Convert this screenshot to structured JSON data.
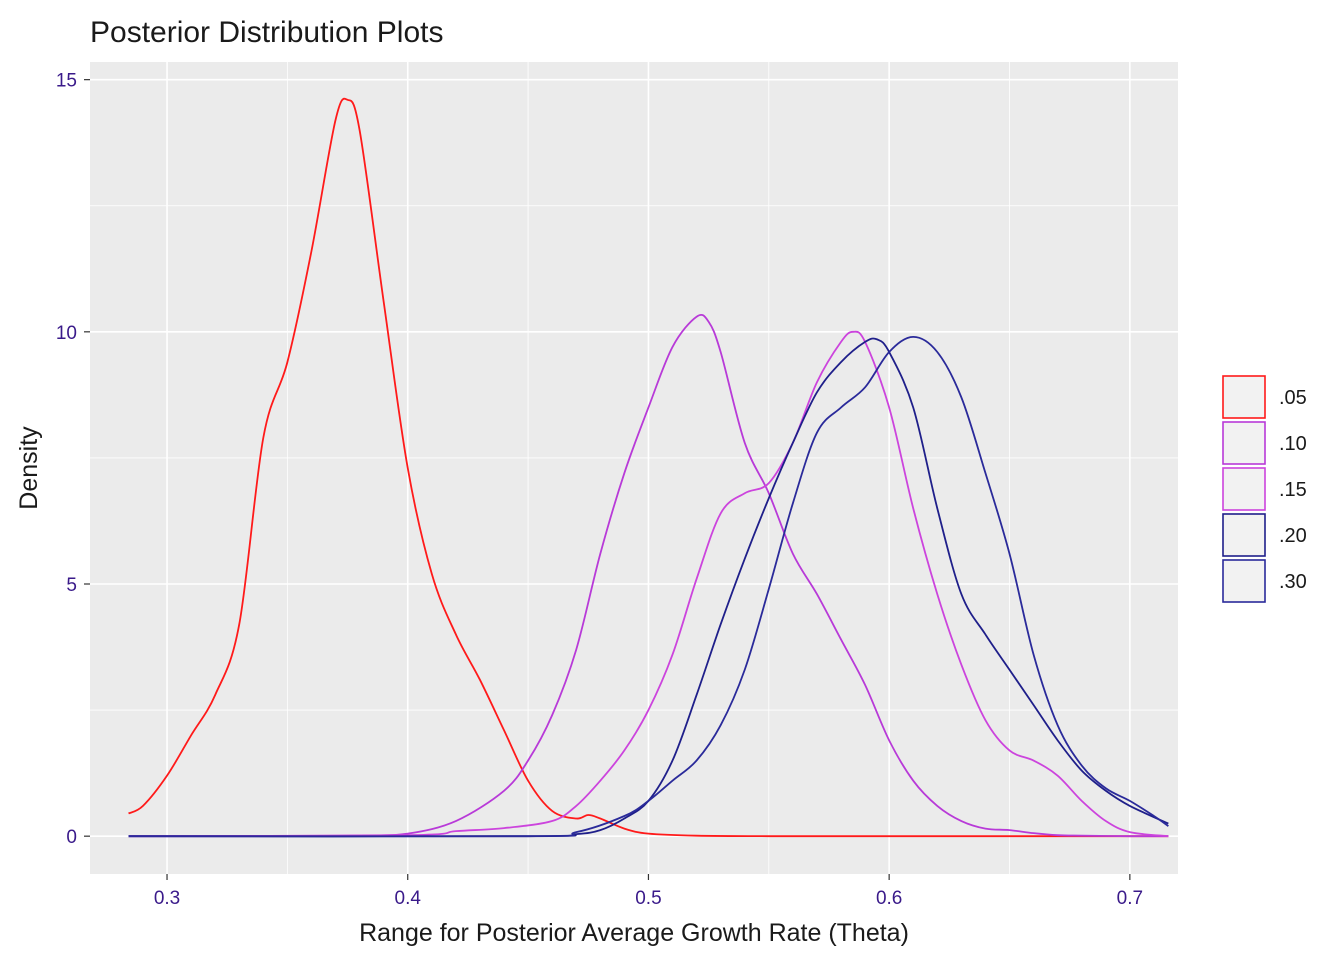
{
  "chart_data": {
    "type": "line",
    "title": "Posterior Distribution Plots",
    "xlabel": "Range for Posterior Average Growth Rate (Theta)",
    "ylabel": "Density",
    "xlim": [
      0.268,
      0.72
    ],
    "ylim": [
      -0.75,
      15.35
    ],
    "x_ticks": [
      0.3,
      0.4,
      0.5,
      0.6,
      0.7
    ],
    "x_tick_labels": [
      "0.3",
      "0.4",
      "0.5",
      "0.6",
      "0.7"
    ],
    "y_ticks": [
      0,
      5,
      10,
      15
    ],
    "y_tick_labels": [
      "0",
      "5",
      "10",
      "15"
    ],
    "grid": true,
    "legend_position": "right",
    "colors": {
      "panel_background": "#ebebeb",
      "grid": "#ffffff",
      "tick_label": "#3a1a8a"
    },
    "series": [
      {
        "name": ".05",
        "color": "#ff1a1a",
        "x": [
          0.284,
          0.29,
          0.3,
          0.31,
          0.32,
          0.33,
          0.34,
          0.35,
          0.36,
          0.37,
          0.375,
          0.38,
          0.39,
          0.4,
          0.41,
          0.42,
          0.43,
          0.44,
          0.45,
          0.46,
          0.47,
          0.475,
          0.48,
          0.49,
          0.5,
          0.52,
          0.55,
          0.6,
          0.65,
          0.7,
          0.716
        ],
        "y": [
          0.45,
          0.6,
          1.2,
          2.0,
          2.8,
          4.2,
          7.9,
          9.4,
          11.6,
          14.2,
          14.6,
          14.0,
          10.6,
          7.3,
          5.2,
          4.0,
          3.1,
          2.1,
          1.1,
          0.5,
          0.35,
          0.42,
          0.35,
          0.15,
          0.05,
          0.01,
          0.0,
          0.0,
          0.0,
          0.0,
          0.0
        ]
      },
      {
        "name": ".10",
        "color": "#b83ad8",
        "x": [
          0.284,
          0.35,
          0.38,
          0.4,
          0.42,
          0.44,
          0.45,
          0.46,
          0.47,
          0.48,
          0.49,
          0.5,
          0.51,
          0.52,
          0.525,
          0.53,
          0.54,
          0.55,
          0.56,
          0.57,
          0.58,
          0.59,
          0.6,
          0.61,
          0.62,
          0.63,
          0.64,
          0.65,
          0.66,
          0.67,
          0.68,
          0.7,
          0.716
        ],
        "y": [
          0.0,
          0.0,
          0.01,
          0.05,
          0.3,
          0.9,
          1.5,
          2.4,
          3.7,
          5.6,
          7.2,
          8.5,
          9.7,
          10.3,
          10.2,
          9.6,
          7.8,
          6.8,
          5.6,
          4.8,
          3.9,
          3.0,
          1.9,
          1.1,
          0.6,
          0.3,
          0.15,
          0.12,
          0.06,
          0.02,
          0.01,
          0.0,
          0.0
        ]
      },
      {
        "name": ".15",
        "color": "#cc44dd",
        "x": [
          0.284,
          0.4,
          0.42,
          0.44,
          0.46,
          0.47,
          0.48,
          0.49,
          0.5,
          0.51,
          0.52,
          0.53,
          0.54,
          0.55,
          0.56,
          0.57,
          0.58,
          0.585,
          0.59,
          0.6,
          0.61,
          0.62,
          0.63,
          0.64,
          0.65,
          0.66,
          0.67,
          0.68,
          0.69,
          0.7,
          0.716
        ],
        "y": [
          0.0,
          0.02,
          0.1,
          0.16,
          0.3,
          0.6,
          1.1,
          1.7,
          2.5,
          3.6,
          5.1,
          6.4,
          6.8,
          7.0,
          7.8,
          9.0,
          9.8,
          10.0,
          9.8,
          8.5,
          6.5,
          4.8,
          3.4,
          2.3,
          1.7,
          1.5,
          1.2,
          0.7,
          0.3,
          0.08,
          0.0
        ]
      },
      {
        "name": ".20",
        "color": "#1f1f8a",
        "x": [
          0.284,
          0.45,
          0.47,
          0.48,
          0.49,
          0.5,
          0.51,
          0.52,
          0.53,
          0.54,
          0.55,
          0.56,
          0.57,
          0.58,
          0.59,
          0.595,
          0.6,
          0.61,
          0.62,
          0.63,
          0.64,
          0.65,
          0.66,
          0.67,
          0.68,
          0.69,
          0.7,
          0.716
        ],
        "y": [
          0.0,
          0.0,
          0.04,
          0.12,
          0.35,
          0.7,
          1.5,
          2.8,
          4.2,
          5.5,
          6.7,
          7.8,
          8.8,
          9.4,
          9.8,
          9.85,
          9.6,
          8.5,
          6.5,
          4.8,
          4.0,
          3.3,
          2.6,
          1.9,
          1.3,
          0.9,
          0.6,
          0.25
        ]
      },
      {
        "name": ".30",
        "color": "#2a2a9a",
        "x": [
          0.284,
          0.45,
          0.47,
          0.49,
          0.5,
          0.51,
          0.52,
          0.53,
          0.54,
          0.55,
          0.56,
          0.57,
          0.58,
          0.59,
          0.6,
          0.61,
          0.62,
          0.63,
          0.64,
          0.65,
          0.66,
          0.67,
          0.68,
          0.69,
          0.7,
          0.71,
          0.716
        ],
        "y": [
          0.0,
          0.0,
          0.08,
          0.4,
          0.7,
          1.1,
          1.5,
          2.2,
          3.3,
          4.9,
          6.6,
          8.0,
          8.5,
          8.9,
          9.6,
          9.9,
          9.6,
          8.7,
          7.2,
          5.6,
          3.6,
          2.2,
          1.4,
          0.95,
          0.7,
          0.4,
          0.2
        ]
      }
    ]
  }
}
